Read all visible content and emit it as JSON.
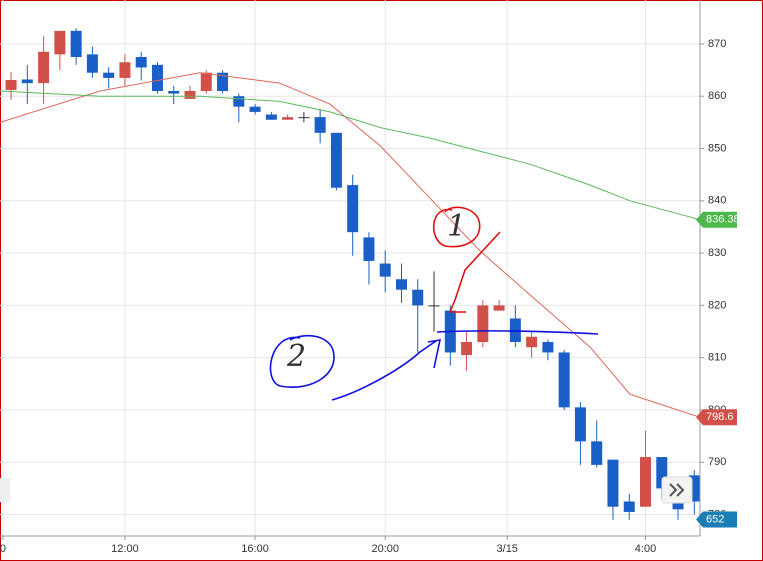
{
  "chart_data": {
    "type": "candlestick",
    "x": [
      0,
      1,
      2,
      3,
      4,
      5,
      6,
      7,
      8,
      9,
      10,
      11,
      12,
      13,
      14,
      15,
      16,
      17,
      18,
      19,
      20,
      21,
      22,
      23,
      24,
      25,
      26,
      27,
      28,
      29,
      30,
      31,
      32,
      33,
      34,
      35,
      36,
      37,
      38,
      39,
      40,
      41,
      42
    ],
    "open": [
      861.2,
      863.2,
      862.5,
      868,
      872.5,
      868,
      864.5,
      863.5,
      867.5,
      866,
      861,
      859.5,
      861,
      864.5,
      860,
      858,
      856.5,
      855.5,
      856,
      856,
      853,
      843,
      833,
      828,
      825,
      823,
      820,
      819,
      810.5,
      813,
      819,
      817.5,
      812,
      813,
      811,
      800.5,
      794,
      790.5,
      782.5,
      781.5,
      791,
      783,
      787.5
    ],
    "high": [
      864.6,
      866,
      871.5,
      872.5,
      873,
      869.5,
      865.5,
      868,
      868.5,
      866.5,
      862,
      862,
      865,
      865,
      860.5,
      858.5,
      857,
      856.5,
      857,
      857.5,
      853,
      845,
      834,
      830.5,
      828,
      825,
      826.5,
      820,
      815,
      821,
      821,
      820,
      815,
      813.5,
      811.5,
      801.5,
      798,
      790.5,
      784,
      796,
      791,
      785,
      788.5
    ],
    "low": [
      859.3,
      858.5,
      858.5,
      865,
      866,
      863.5,
      861.5,
      862,
      863,
      860.5,
      858.5,
      859.5,
      860.5,
      860.5,
      855,
      856.5,
      855.5,
      855.5,
      855,
      851,
      842,
      829.5,
      824,
      822.5,
      820.5,
      811,
      815,
      808.5,
      807.5,
      812,
      819,
      812,
      810,
      809.5,
      800,
      789.5,
      789,
      779,
      779,
      781.5,
      783,
      779,
      780
    ],
    "close": [
      863.1,
      862.5,
      868.5,
      872.5,
      867.5,
      864.5,
      863.5,
      866.5,
      865.5,
      861,
      860.5,
      861,
      864.5,
      861,
      858,
      857,
      855.5,
      856,
      856,
      853,
      842.5,
      834,
      828.5,
      825.5,
      823,
      820,
      820,
      811,
      813,
      820,
      820,
      813,
      814,
      811,
      800.5,
      794,
      789.5,
      781.5,
      780.5,
      791,
      785,
      781,
      782.5
    ],
    "up_color": "#d2504a",
    "down_color": "#1a5fc8",
    "lines": [
      {
        "color": "#e0665a",
        "x": [
          -0.68,
          5.47,
          11.6,
          16.5,
          19.6,
          22.7,
          25.75,
          28.8,
          31.9,
          35.6,
          38.05,
          42.35
        ],
        "values": [
          855,
          861,
          864.5,
          862.5,
          858.5,
          850.5,
          840.5,
          830.5,
          822,
          812,
          803,
          798.6
        ]
      },
      {
        "color": "#5cb85c",
        "x": [
          -0.68,
          5.47,
          11.6,
          16.5,
          19.6,
          22.7,
          25.75,
          28.8,
          31.9,
          35.6,
          38.05,
          42.35
        ],
        "values": [
          861,
          860,
          860,
          859,
          857,
          854,
          852,
          849.5,
          847,
          843,
          840,
          836.38
        ]
      }
    ],
    "price_tags": [
      {
        "value": 836.38,
        "color": "#4cb84c"
      },
      {
        "value": 798.6,
        "color": "#d2504a"
      }
    ],
    "countdown_label": "652",
    "countdown_color": "#1a7db5",
    "xlim": [
      -0.68,
      42.35
    ],
    "ylim": [
      775.9,
      878.4
    ],
    "xticks": [
      {
        "value": -0.5,
        "label": "0"
      },
      {
        "value": 7,
        "label": "12:00"
      },
      {
        "value": 15,
        "label": "16:00"
      },
      {
        "value": 23,
        "label": "20:00"
      },
      {
        "value": 30.5,
        "label": "3/15"
      },
      {
        "value": 39,
        "label": "4:00"
      }
    ],
    "yticks": [
      780,
      790,
      800,
      810,
      820,
      830,
      840,
      850,
      860,
      870
    ],
    "grid": true,
    "annotations": [
      {
        "text": "1",
        "color": "#e01010"
      },
      {
        "text": "2",
        "color": "#1010e0"
      }
    ]
  }
}
